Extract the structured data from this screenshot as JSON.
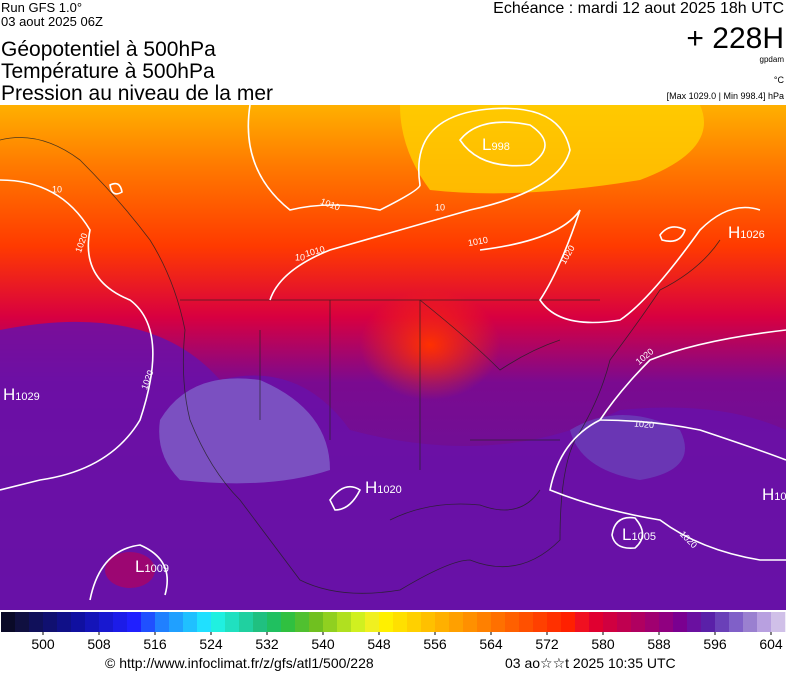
{
  "header": {
    "run": "Run GFS 1.0°",
    "run_date": "03 aout 2025 06Z",
    "titles": [
      "Géopotentiel à 500hPa",
      "Température à 500hPa",
      "Pression au niveau de la mer"
    ],
    "valid": "Echéance : mardi 12 aout 2025 18h UTC",
    "lead": "+ 228H",
    "unit_geo": "gpdam",
    "unit_temp": "°C",
    "range": "[Max 1029.0 | Min 998.4] hPa"
  },
  "map": {
    "centers": [
      {
        "letter": "L",
        "value": "998"
      },
      {
        "letter": "H",
        "value": "1026"
      },
      {
        "letter": "H",
        "value": "1029"
      },
      {
        "letter": "H",
        "value": "1020"
      },
      {
        "letter": "L",
        "value": "1005"
      },
      {
        "letter": "L",
        "value": "1009"
      },
      {
        "letter": "H",
        "value": "10"
      }
    ],
    "isobar_labels": [
      "1010",
      "1010",
      "1010",
      "1020",
      "1020",
      "1020",
      "1020",
      "1020",
      "1020",
      "10",
      "10",
      "10"
    ]
  },
  "colorbar": {
    "range": [
      494,
      606
    ],
    "ticks": [
      500,
      508,
      516,
      524,
      532,
      540,
      548,
      556,
      564,
      572,
      580,
      588,
      596,
      604
    ],
    "colors": [
      "#0a0a28",
      "#101040",
      "#10105a",
      "#101070",
      "#101088",
      "#1010a0",
      "#1414b8",
      "#1818d0",
      "#1c1ce8",
      "#2020ff",
      "#2050ff",
      "#2080ff",
      "#20a0ff",
      "#20c0ff",
      "#20e0ff",
      "#20f0e0",
      "#20e0c0",
      "#20d0a0",
      "#20c080",
      "#20c060",
      "#30c040",
      "#50c030",
      "#70c020",
      "#90d020",
      "#b0e020",
      "#d0f020",
      "#f0f020",
      "#fff000",
      "#ffe000",
      "#ffd000",
      "#ffc000",
      "#ffb000",
      "#ffa000",
      "#ff9000",
      "#ff8000",
      "#ff7000",
      "#ff6000",
      "#ff5000",
      "#ff4000",
      "#ff3000",
      "#ff2000",
      "#f01020",
      "#e00030",
      "#d00040",
      "#c00050",
      "#b00060",
      "#a00070",
      "#900080",
      "#7a0090",
      "#6a10a0",
      "#5a20a8",
      "#6a40b8",
      "#8060c8",
      "#9a80d0",
      "#b8a0e0",
      "#d0c0e8"
    ]
  },
  "footer": {
    "source": "© http://www.infoclimat.fr/z/gfs/atl1/500/228",
    "date": "03 ao☆☆t 2025 10:35 UTC"
  }
}
